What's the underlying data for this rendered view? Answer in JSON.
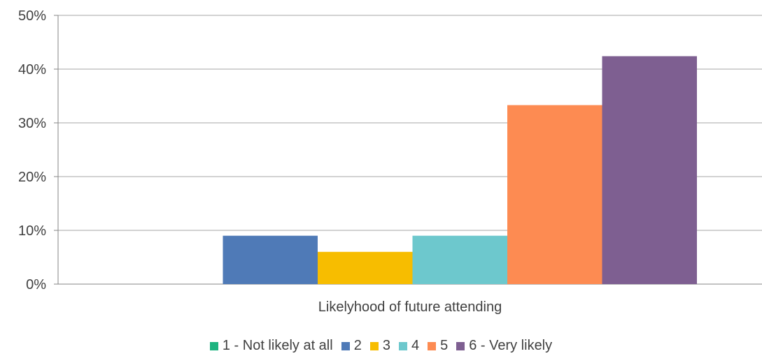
{
  "chart_data": {
    "type": "bar",
    "xlabel": "Likelyhood of future attending",
    "ylabel": "",
    "ylim": [
      0,
      50
    ],
    "yticks": [
      "0%",
      "10%",
      "20%",
      "30%",
      "40%",
      "50%"
    ],
    "grid": true,
    "legend_position": "bottom",
    "series": [
      {
        "name": "1 - Not likely at all",
        "value": 0,
        "color": "#1db37f"
      },
      {
        "name": "2",
        "value": 9,
        "color": "#4f7ab7"
      },
      {
        "name": "3",
        "value": 6,
        "color": "#f7bd00"
      },
      {
        "name": "4",
        "value": 9,
        "color": "#6dc8cd"
      },
      {
        "name": "5",
        "value": 33.3,
        "color": "#fd8b52"
      },
      {
        "name": "6 - Very likely",
        "value": 42.4,
        "color": "#7e5f91"
      }
    ]
  }
}
